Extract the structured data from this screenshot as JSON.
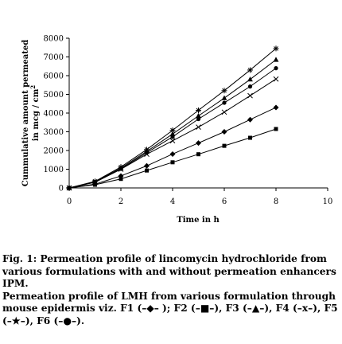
{
  "chart_data": {
    "type": "line",
    "xlabel": "Time in h",
    "ylabel_line1": "Cummulative amount permeated",
    "ylabel_line2": "in mcg / cm",
    "ylabel_sup": "2",
    "xlim": [
      0,
      10
    ],
    "ylim": [
      0,
      8000
    ],
    "x_ticks": [
      0,
      2,
      4,
      6,
      8,
      10
    ],
    "y_ticks": [
      0,
      1000,
      2000,
      3000,
      4000,
      5000,
      6000,
      7000,
      8000
    ],
    "grid": false,
    "x": [
      0,
      1,
      2,
      3,
      4,
      5,
      6,
      7,
      8
    ],
    "series": [
      {
        "marker": "square",
        "values": [
          0,
          170,
          480,
          930,
          1370,
          1800,
          2250,
          2680,
          3150
        ]
      },
      {
        "marker": "diamond",
        "values": [
          0,
          200,
          640,
          1180,
          1810,
          2400,
          3000,
          3650,
          4300
        ]
      },
      {
        "marker": "cross",
        "values": [
          0,
          300,
          1000,
          1800,
          2520,
          3250,
          4050,
          4930,
          5820
        ]
      },
      {
        "marker": "circle",
        "values": [
          0,
          320,
          1020,
          1880,
          2730,
          3680,
          4550,
          5420,
          6400
        ]
      },
      {
        "marker": "triangle",
        "values": [
          0,
          330,
          1060,
          1950,
          2880,
          3850,
          4800,
          5800,
          6850
        ]
      },
      {
        "marker": "star",
        "values": [
          0,
          350,
          1120,
          2050,
          3080,
          4150,
          5200,
          6300,
          7450
        ]
      }
    ]
  },
  "caption": {
    "line1": "Fig. 1: Permeation profile of lincomycin hydrochloride from various formulations with and without permeation enhancers IPM.",
    "line2": "Permeation profile of LMH from various formulation through mouse epidermis viz. F1 (–◆– ); F2 (–■–), F3 (–▲–), F4 (–x–), F5 (–★–), F6 (–●–)."
  }
}
